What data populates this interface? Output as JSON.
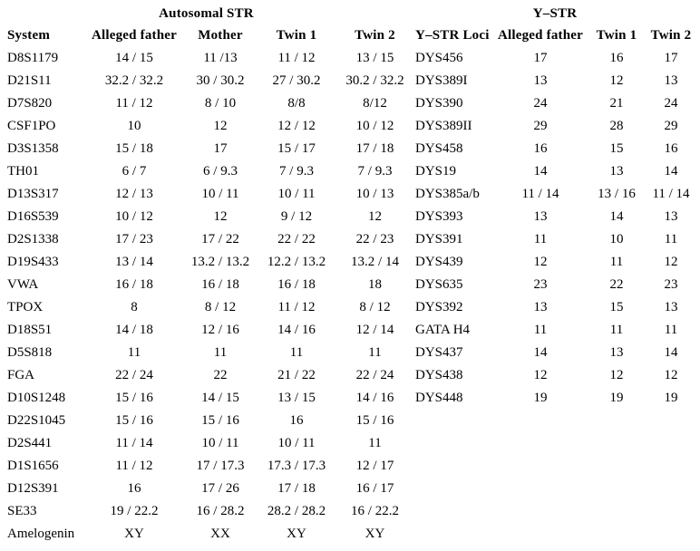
{
  "colors": {
    "text": "#000000",
    "background": "#ffffff"
  },
  "autosomal": {
    "title": "Autosomal STR",
    "headers": [
      "System",
      "Alleged father",
      "Mother",
      "Twin 1",
      "Twin 2"
    ],
    "rows": [
      [
        "D8S1179",
        "14 / 15",
        "11 /13",
        "11 / 12",
        "13 / 15"
      ],
      [
        "D21S11",
        "32.2 / 32.2",
        "30 / 30.2",
        "27 / 30.2",
        "30.2 / 32.2"
      ],
      [
        "D7S820",
        "11 / 12",
        "8 / 10",
        "8/8",
        "8/12"
      ],
      [
        "CSF1PO",
        "10",
        "12",
        "12 / 12",
        "10 / 12"
      ],
      [
        "D3S1358",
        "15 / 18",
        "17",
        "15 / 17",
        "17 / 18"
      ],
      [
        "TH01",
        "6 / 7",
        "6 / 9.3",
        "7 / 9.3",
        "7 / 9.3"
      ],
      [
        "D13S317",
        "12 / 13",
        "10 / 11",
        "10 / 11",
        "10 / 13"
      ],
      [
        "D16S539",
        "10 / 12",
        "12",
        "9 / 12",
        "12"
      ],
      [
        "D2S1338",
        "17 / 23",
        "17 / 22",
        "22 / 22",
        "22 / 23"
      ],
      [
        "D19S433",
        "13 / 14",
        "13.2 / 13.2",
        "12.2 / 13.2",
        "13.2 / 14"
      ],
      [
        "VWA",
        "16 / 18",
        "16 / 18",
        "16 / 18",
        "18"
      ],
      [
        "TPOX",
        "8",
        "8 / 12",
        "11 / 12",
        "8 / 12"
      ],
      [
        "D18S51",
        "14 / 18",
        "12 / 16",
        "14 / 16",
        "12 / 14"
      ],
      [
        "D5S818",
        "11",
        "11",
        "11",
        "11"
      ],
      [
        "FGA",
        "22 / 24",
        "22",
        "21 / 22",
        "22 / 24"
      ],
      [
        "D10S1248",
        "15 / 16",
        "14 / 15",
        "13 / 15",
        "14 / 16"
      ],
      [
        "D22S1045",
        "15 / 16",
        "15 / 16",
        "16",
        "15 / 16"
      ],
      [
        "D2S441",
        "11 / 14",
        "10 / 11",
        "10 / 11",
        "11"
      ],
      [
        "D1S1656",
        "11 / 12",
        "17 / 17.3",
        "17.3 / 17.3",
        "12 / 17"
      ],
      [
        "D12S391",
        "16",
        "17 / 26",
        "17 / 18",
        "16 / 17"
      ],
      [
        "SE33",
        "19 / 22.2",
        "16 / 28.2",
        "28.2 / 28.2",
        "16 / 22.2"
      ],
      [
        "Amelogenin",
        "XY",
        "XX",
        "XY",
        "XY"
      ]
    ]
  },
  "ystr": {
    "title": "Y–STR",
    "headers": [
      "Y–STR Loci",
      "Alleged father",
      "Twin 1",
      "Twin 2"
    ],
    "rows": [
      [
        "DYS456",
        "17",
        "16",
        "17"
      ],
      [
        "DYS389I",
        "13",
        "12",
        "13"
      ],
      [
        "DYS390",
        "24",
        "21",
        "24"
      ],
      [
        "DYS389II",
        "29",
        "28",
        "29"
      ],
      [
        "DYS458",
        "16",
        "15",
        "16"
      ],
      [
        "DYS19",
        "14",
        "13",
        "14"
      ],
      [
        "DYS385a/b",
        "11 / 14",
        "13 / 16",
        "11 / 14"
      ],
      [
        "DYS393",
        "13",
        "14",
        "13"
      ],
      [
        "DYS391",
        "11",
        "10",
        "11"
      ],
      [
        "DYS439",
        "12",
        "11",
        "12"
      ],
      [
        "DYS635",
        "23",
        "22",
        "23"
      ],
      [
        "DYS392",
        "13",
        "15",
        "13"
      ],
      [
        "GATA H4",
        "11",
        "11",
        "11"
      ],
      [
        "DYS437",
        "14",
        "13",
        "14"
      ],
      [
        "DYS438",
        "12",
        "12",
        "12"
      ],
      [
        "DYS448",
        "19",
        "19",
        "19"
      ]
    ]
  }
}
